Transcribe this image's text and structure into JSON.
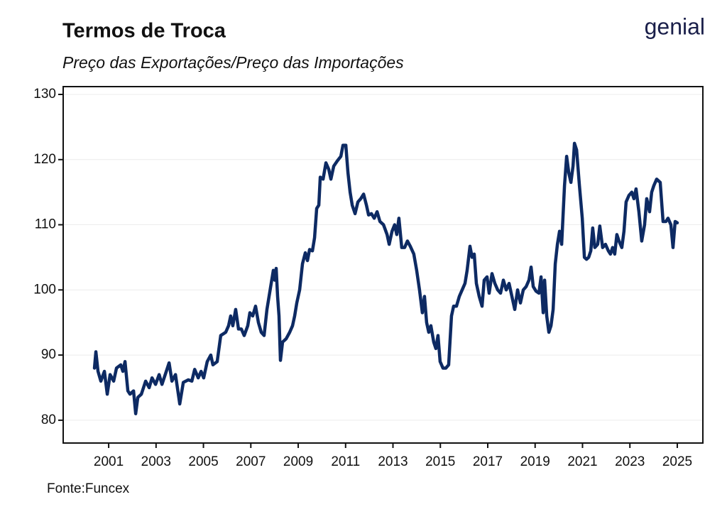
{
  "logo": "genial",
  "chart_data": {
    "type": "line",
    "title": "Termos de Troca",
    "subtitle": "Preço das Exportações/Preço das Importações",
    "source": "Fonte:Funcex",
    "xlim": [
      1999.08,
      2026.08
    ],
    "ylim": [
      76.5,
      131.2
    ],
    "xticks": [
      2001,
      2003,
      2005,
      2007,
      2009,
      2011,
      2013,
      2015,
      2017,
      2019,
      2021,
      2023,
      2025
    ],
    "yticks": [
      80,
      90,
      100,
      110,
      120,
      130
    ],
    "grid": true,
    "series": [
      {
        "color": "#0d2a63",
        "x": [
          2000.4,
          2000.46,
          2000.55,
          2000.67,
          2000.82,
          2000.94,
          2001.06,
          2001.21,
          2001.33,
          2001.51,
          2001.6,
          2001.69,
          2001.81,
          2001.9,
          2002.05,
          2002.14,
          2002.23,
          2002.38,
          2002.56,
          2002.71,
          2002.83,
          2002.98,
          2003.13,
          2003.25,
          2003.55,
          2003.67,
          2003.82,
          2004.0,
          2004.15,
          2004.36,
          2004.51,
          2004.63,
          2004.78,
          2004.9,
          2005.01,
          2005.16,
          2005.31,
          2005.4,
          2005.58,
          2005.73,
          2005.94,
          2006.06,
          2006.15,
          2006.24,
          2006.36,
          2006.48,
          2006.6,
          2006.72,
          2006.87,
          2006.96,
          2007.08,
          2007.2,
          2007.32,
          2007.44,
          2007.56,
          2007.68,
          2007.77,
          2007.86,
          2007.95,
          2008.01,
          2008.07,
          2008.13,
          2008.19,
          2008.25,
          2008.34,
          2008.49,
          2008.64,
          2008.76,
          2008.85,
          2008.94,
          2009.06,
          2009.18,
          2009.3,
          2009.39,
          2009.48,
          2009.6,
          2009.69,
          2009.78,
          2009.87,
          2009.93,
          2010.05,
          2010.17,
          2010.29,
          2010.38,
          2010.5,
          2010.65,
          2010.8,
          2010.89,
          2011.01,
          2011.1,
          2011.19,
          2011.28,
          2011.4,
          2011.52,
          2011.64,
          2011.76,
          2011.88,
          2011.97,
          2012.09,
          2012.21,
          2012.33,
          2012.45,
          2012.6,
          2012.75,
          2012.84,
          2012.96,
          2013.07,
          2013.16,
          2013.25,
          2013.37,
          2013.49,
          2013.61,
          2013.73,
          2013.88,
          2014.0,
          2014.12,
          2014.24,
          2014.33,
          2014.42,
          2014.51,
          2014.6,
          2014.72,
          2014.81,
          2014.9,
          2014.99,
          2015.11,
          2015.23,
          2015.35,
          2015.47,
          2015.56,
          2015.68,
          2015.8,
          2015.92,
          2016.04,
          2016.13,
          2016.25,
          2016.34,
          2016.43,
          2016.52,
          2016.64,
          2016.76,
          2016.85,
          2016.97,
          2017.06,
          2017.18,
          2017.3,
          2017.42,
          2017.54,
          2017.66,
          2017.78,
          2017.9,
          2018.02,
          2018.14,
          2018.26,
          2018.38,
          2018.5,
          2018.62,
          2018.74,
          2018.83,
          2018.92,
          2019.04,
          2019.16,
          2019.25,
          2019.34,
          2019.4,
          2019.49,
          2019.58,
          2019.67,
          2019.76,
          2019.85,
          2019.94,
          2020.03,
          2020.12,
          2020.24,
          2020.33,
          2020.42,
          2020.51,
          2020.6,
          2020.66,
          2020.75,
          2020.87,
          2020.99,
          2021.08,
          2021.17,
          2021.26,
          2021.35,
          2021.43,
          2021.52,
          2021.64,
          2021.73,
          2021.85,
          2021.97,
          2022.09,
          2022.18,
          2022.27,
          2022.36,
          2022.45,
          2022.54,
          2022.66,
          2022.75,
          2022.84,
          2022.96,
          2023.08,
          2023.17,
          2023.26,
          2023.38,
          2023.5,
          2023.62,
          2023.71,
          2023.83,
          2023.92,
          2024.01,
          2024.13,
          2024.28,
          2024.4,
          2024.52,
          2024.61,
          2024.73,
          2024.82,
          2024.91,
          2025.0
        ],
        "values": [
          88,
          90.5,
          87.5,
          86,
          87.5,
          84,
          87,
          86,
          88,
          88.5,
          87.5,
          89,
          84.5,
          84,
          84.5,
          81,
          83.5,
          84,
          86,
          85,
          86.5,
          85.5,
          87,
          85.5,
          88.8,
          86,
          87,
          82.5,
          85.8,
          86.2,
          86,
          87.8,
          86.5,
          87.5,
          86.5,
          89,
          90,
          88.5,
          89,
          93,
          93.5,
          94.5,
          96,
          94.5,
          97,
          94,
          94,
          93,
          94.5,
          96.5,
          96,
          97.5,
          95,
          93.5,
          93,
          97,
          99,
          101,
          103,
          101.5,
          103.3,
          99,
          96,
          89.2,
          92,
          92.5,
          93.5,
          94.5,
          96,
          98,
          100,
          104,
          105.7,
          104.5,
          106.2,
          106,
          108,
          112.5,
          113,
          117.3,
          117,
          119.5,
          118.5,
          117,
          119,
          119.8,
          120.5,
          122.2,
          122.2,
          118,
          115,
          113,
          111.7,
          113.5,
          114,
          114.7,
          113,
          111.5,
          111.7,
          111,
          112,
          110.5,
          110,
          108.5,
          107,
          109,
          110,
          108.5,
          111,
          106.5,
          106.5,
          107.5,
          106.7,
          105.5,
          103,
          100,
          96.5,
          99,
          95,
          93.5,
          94.5,
          92,
          91,
          93,
          89,
          88,
          88,
          88.5,
          96,
          97.5,
          97.5,
          99,
          100,
          101,
          103,
          106.7,
          105,
          105.5,
          101,
          99,
          97.5,
          101.5,
          102,
          99.5,
          102.5,
          101,
          100,
          99.5,
          101.5,
          100,
          101,
          99,
          97,
          100,
          98,
          100,
          100.5,
          101.5,
          103.5,
          100.5,
          99.8,
          99.5,
          102,
          96.5,
          101.5,
          96,
          93.5,
          94.5,
          97,
          104,
          107,
          109,
          107,
          116,
          120.5,
          118,
          116.5,
          119,
          122.5,
          121.5,
          116,
          111,
          105,
          104.7,
          105,
          106,
          109.5,
          106.5,
          107,
          109.8,
          106.5,
          107,
          106,
          105.5,
          106.5,
          105.5,
          108.5,
          107.5,
          106.5,
          109,
          113.5,
          114.5,
          115,
          114,
          115.5,
          112,
          107.5,
          110,
          114,
          112,
          115,
          116,
          117,
          116.5,
          110.5,
          110.5,
          111,
          110,
          106.5,
          110.5,
          110.3
        ]
      }
    ]
  }
}
